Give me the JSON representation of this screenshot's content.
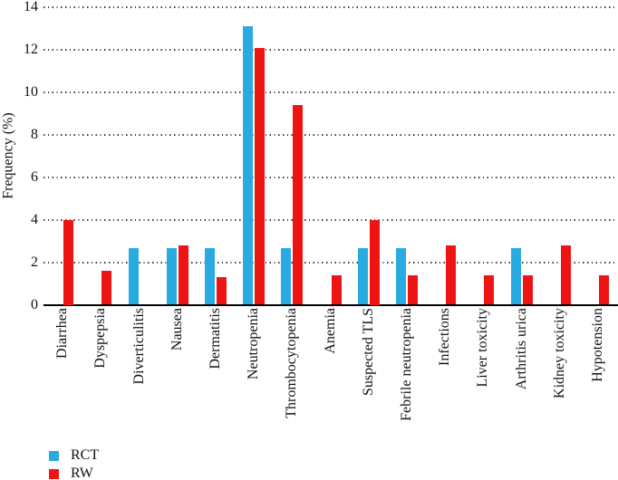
{
  "chart_data": {
    "type": "bar",
    "title": "",
    "xlabel": "",
    "ylabel": "Frequency (%)",
    "ylim": [
      0,
      14
    ],
    "yticks": [
      0,
      2,
      4,
      6,
      8,
      10,
      12,
      14
    ],
    "grid": {
      "axis": "y",
      "style": "dotted"
    },
    "legend_position": "bottom-left",
    "categories": [
      "Diarrhea",
      "Dyspepsia",
      "Diverticulitis",
      "Nausea",
      "Dermatitis",
      "Neutropenia",
      "Thrombocytopenia",
      "Anemia",
      "Suspected TLS",
      "Febrile neutropenia",
      "Infections",
      "Liver toxicity",
      "Arthritis urica",
      "Kidney toxicity",
      "Hypotension"
    ],
    "series": [
      {
        "name": "RCT",
        "color": "#29abe2",
        "values": [
          0,
          0,
          2.7,
          2.7,
          2.7,
          13.1,
          2.7,
          0,
          2.7,
          2.7,
          0,
          0,
          2.7,
          0,
          0
        ]
      },
      {
        "name": "RW",
        "color": "#ee1414",
        "values": [
          4.0,
          1.6,
          0,
          2.8,
          1.3,
          12.1,
          9.4,
          1.4,
          4.0,
          1.4,
          2.8,
          1.4,
          1.4,
          2.8,
          1.4
        ]
      }
    ],
    "colors": {
      "axis": "#000000",
      "grid_dots": "#3b3b3b",
      "text": "#111111"
    }
  }
}
